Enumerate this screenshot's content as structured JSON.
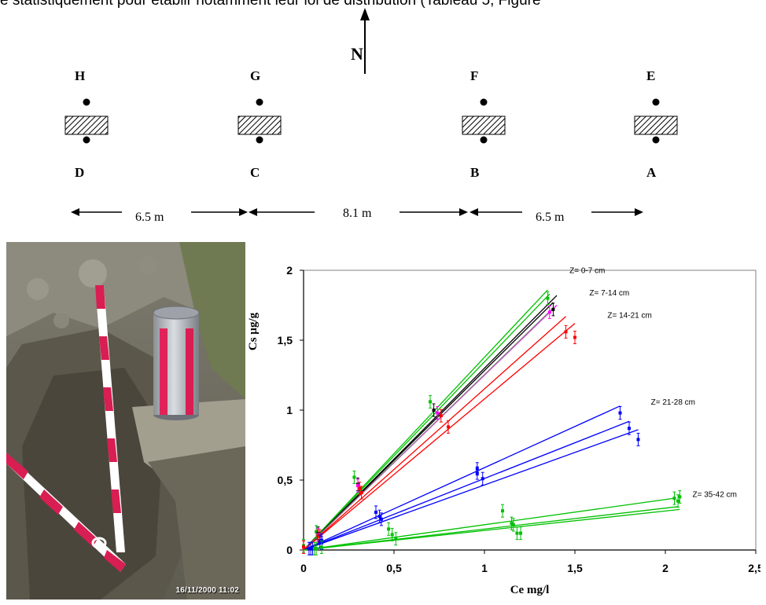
{
  "text": {
    "top_line": "e statistiquement pour établir notamment leur loi de distribution (Tableau 5, Figure"
  },
  "site_plan": {
    "north_label": "N",
    "top_points": [
      "H",
      "G",
      "F",
      "E"
    ],
    "bottom_points": [
      "D",
      "C",
      "B",
      "A"
    ],
    "distances": [
      "6.5 m",
      "8.1 m",
      "6.5 m"
    ]
  },
  "photo": {
    "timestamp": "16/11/2000 11:02"
  },
  "chart_data": {
    "type": "scatter",
    "xlabel": "Ce mg/l",
    "ylabel": "Cs µg/g",
    "xlim": [
      0,
      2.5
    ],
    "ylim": [
      0,
      2
    ],
    "x_ticks": [
      "0",
      "0,5",
      "1",
      "1,5",
      "2",
      "2,5"
    ],
    "y_ticks": [
      "0",
      "0,5",
      "1",
      "1,5",
      "2"
    ],
    "annotations": [
      {
        "text": "Z= 0-7 cm",
        "x": 1.47,
        "y": 1.98
      },
      {
        "text": "Z= 7-14 cm",
        "x": 1.58,
        "y": 1.82
      },
      {
        "text": "Z= 14-21 cm",
        "x": 1.68,
        "y": 1.66
      },
      {
        "text": "Z= 21-28 cm",
        "x": 1.92,
        "y": 1.04
      },
      {
        "text": "Z= 35-42 cm",
        "x": 2.15,
        "y": 0.38
      }
    ],
    "series": [
      {
        "color": "#00c000",
        "x": [
          0,
          0.07,
          0.28,
          0.7,
          1.35
        ],
        "y": [
          0.03,
          0.13,
          0.52,
          1.06,
          1.8
        ]
      },
      {
        "color": "#000000",
        "x": [
          0,
          0.08,
          0.3,
          0.72,
          1.38
        ],
        "y": [
          0.02,
          0.12,
          0.47,
          1.0,
          1.72
        ]
      },
      {
        "color": "#ff00ff",
        "x": [
          0,
          0.08,
          0.3,
          0.74,
          1.36
        ],
        "y": [
          0.02,
          0.11,
          0.46,
          0.98,
          1.7
        ]
      },
      {
        "color": "#ff0000",
        "x": [
          0,
          0.08,
          0.31,
          0.76,
          1.45
        ],
        "y": [
          0.02,
          0.1,
          0.44,
          0.96,
          1.56
        ]
      },
      {
        "color": "#ff0000",
        "x": [
          0,
          0.09,
          0.32,
          0.8,
          1.5
        ],
        "y": [
          0.02,
          0.1,
          0.41,
          0.88,
          1.52
        ]
      },
      {
        "color": "#0000ff",
        "x": [
          0.03,
          0.1,
          0.4,
          0.96,
          1.75
        ],
        "y": [
          0.01,
          0.07,
          0.27,
          0.58,
          0.98
        ]
      },
      {
        "color": "#0000ff",
        "x": [
          0.04,
          0.09,
          0.42,
          0.96,
          1.8
        ],
        "y": [
          0.01,
          0.06,
          0.24,
          0.55,
          0.87
        ]
      },
      {
        "color": "#0000ff",
        "x": [
          0.05,
          0.1,
          0.43,
          0.99,
          1.85
        ],
        "y": [
          0.01,
          0.05,
          0.22,
          0.51,
          0.79
        ]
      },
      {
        "color": "#00c000",
        "x": [
          0.06,
          0.47,
          1.1,
          1.15,
          2.05
        ],
        "y": [
          0.01,
          0.15,
          0.28,
          0.19,
          0.37
        ]
      },
      {
        "color": "#00c000",
        "x": [
          0.07,
          0.49,
          1.16,
          1.2,
          2.07
        ],
        "y": [
          0.01,
          0.11,
          0.18,
          0.12,
          0.35
        ]
      },
      {
        "color": "#00c000",
        "x": [
          0.1,
          0.51,
          1.18,
          2.08
        ],
        "y": [
          0.02,
          0.08,
          0.12,
          0.38
        ]
      }
    ],
    "fit_lines": [
      {
        "color": "#00c000",
        "x": [
          0,
          1.35
        ],
        "y": [
          0,
          1.86
        ]
      },
      {
        "color": "#00c000",
        "x": [
          0,
          1.36
        ],
        "y": [
          0,
          1.83
        ]
      },
      {
        "color": "#000000",
        "x": [
          0,
          1.4
        ],
        "y": [
          0,
          1.82
        ]
      },
      {
        "color": "#000000",
        "x": [
          0,
          1.38
        ],
        "y": [
          0,
          1.77
        ]
      },
      {
        "color": "#ff00ff",
        "x": [
          0,
          1.4
        ],
        "y": [
          0,
          1.75
        ]
      },
      {
        "color": "#808080",
        "x": [
          0,
          1.38
        ],
        "y": [
          0,
          1.73
        ]
      },
      {
        "color": "#ff0000",
        "x": [
          0,
          1.45
        ],
        "y": [
          0,
          1.67
        ]
      },
      {
        "color": "#ff0000",
        "x": [
          0,
          1.5
        ],
        "y": [
          0,
          1.62
        ]
      },
      {
        "color": "#0000ff",
        "x": [
          0,
          1.75
        ],
        "y": [
          0,
          1.03
        ]
      },
      {
        "color": "#0000ff",
        "x": [
          0,
          1.8
        ],
        "y": [
          0,
          0.92
        ]
      },
      {
        "color": "#0000ff",
        "x": [
          0,
          1.85
        ],
        "y": [
          0,
          0.86
        ]
      },
      {
        "color": "#00c000",
        "x": [
          0,
          2.05
        ],
        "y": [
          0,
          0.37
        ]
      },
      {
        "color": "#00c000",
        "x": [
          0,
          2.07
        ],
        "y": [
          0,
          0.31
        ]
      },
      {
        "color": "#00c000",
        "x": [
          0,
          2.08
        ],
        "y": [
          0,
          0.29
        ]
      }
    ]
  }
}
